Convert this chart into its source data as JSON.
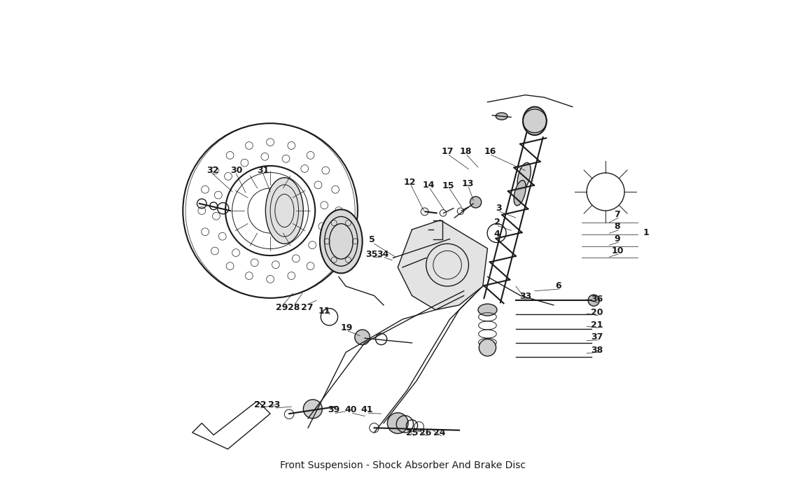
{
  "title": "Front Suspension - Shock Absorber And Brake Disc",
  "bg_color": "#ffffff",
  "line_color": "#1a1a1a",
  "fig_width": 11.5,
  "fig_height": 6.83
}
